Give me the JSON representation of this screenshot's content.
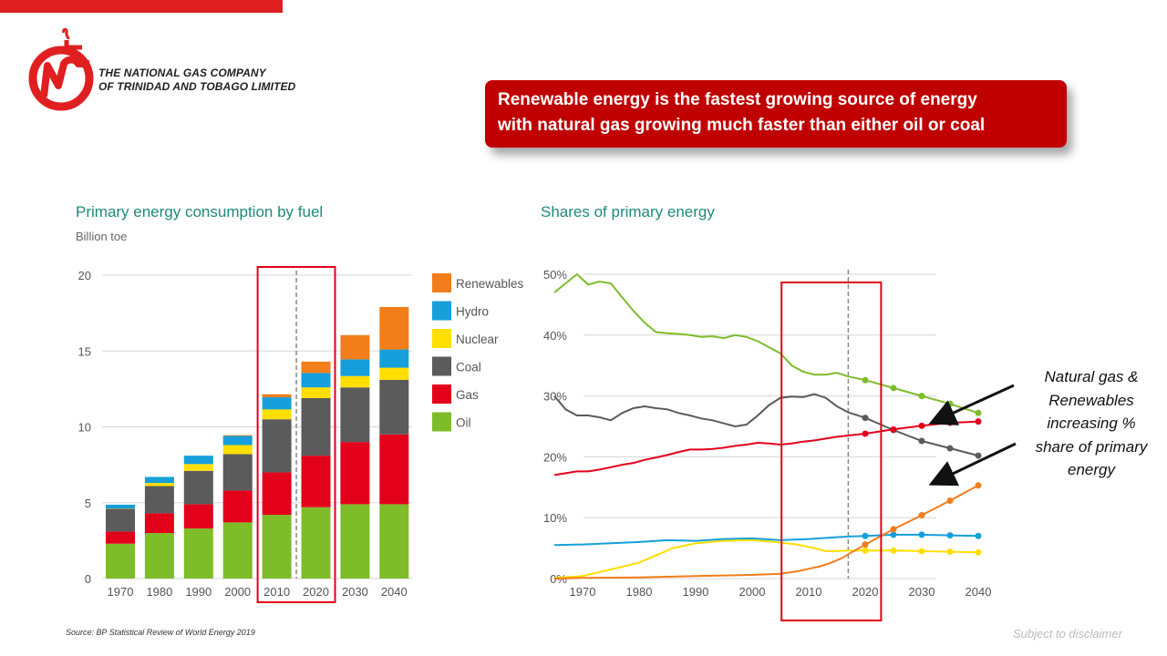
{
  "header": {
    "company_line1": "THE NATIONAL GAS COMPANY",
    "company_line2": "OF TRINIDAD AND TOBAGO LIMITED",
    "accent_color": "#e02020"
  },
  "banner": {
    "line1": "Renewable energy is the fastest growing source of energy",
    "line2": "with natural gas growing much faster than either oil or coal",
    "color": "#c00000"
  },
  "annotation": {
    "lines": [
      "Natural gas &",
      "Renewables",
      "increasing %",
      "share of primary",
      "energy"
    ]
  },
  "footer": {
    "source": "Source: BP Statistical Review of World Energy 2019",
    "disclaimer": "Subject to disclaimer"
  },
  "chart_data": [
    {
      "type": "bar",
      "stacked": true,
      "title": "Primary energy consumption by fuel",
      "subtitle": "Billion toe",
      "categories": [
        "1970",
        "1980",
        "1990",
        "2000",
        "2010",
        "2020",
        "2030",
        "2040"
      ],
      "ylim": [
        0,
        20
      ],
      "yticks": [
        0,
        5,
        10,
        15,
        20
      ],
      "series": [
        {
          "name": "Oil",
          "color": "#7ebc2a",
          "values": [
            2.3,
            3.0,
            3.3,
            3.7,
            4.2,
            4.7,
            4.9,
            4.9
          ]
        },
        {
          "name": "Gas",
          "color": "#e3001b",
          "values": [
            0.8,
            1.3,
            1.6,
            2.1,
            2.8,
            3.4,
            4.1,
            4.6
          ]
        },
        {
          "name": "Coal",
          "color": "#5b5b5b",
          "values": [
            1.5,
            1.8,
            2.2,
            2.4,
            3.5,
            3.8,
            3.6,
            3.6
          ]
        },
        {
          "name": "Nuclear",
          "color": "#ffde00",
          "values": [
            0.02,
            0.2,
            0.45,
            0.6,
            0.65,
            0.7,
            0.75,
            0.8
          ]
        },
        {
          "name": "Hydro",
          "color": "#169fdb",
          "values": [
            0.25,
            0.4,
            0.55,
            0.6,
            0.8,
            0.95,
            1.1,
            1.2
          ]
        },
        {
          "name": "Renewables",
          "color": "#f17d1b",
          "values": [
            0.0,
            0.0,
            0.0,
            0.05,
            0.2,
            0.75,
            1.6,
            2.8
          ]
        }
      ],
      "legend_order": [
        "Renewables",
        "Hydro",
        "Nuclear",
        "Coal",
        "Gas",
        "Oil"
      ],
      "highlight": {
        "from": "2010",
        "to": "2020"
      },
      "divider_between": [
        "2010",
        "2020"
      ]
    },
    {
      "type": "line",
      "title": "Shares of primary energy",
      "xlim": [
        1970,
        2040
      ],
      "xticks": [
        1970,
        1980,
        1990,
        2000,
        2010,
        2020,
        2030,
        2040
      ],
      "ylim": [
        0,
        50
      ],
      "yticks": [
        0,
        10,
        20,
        30,
        40,
        50
      ],
      "ytick_labels": [
        "0%",
        "10%",
        "20%",
        "30%",
        "40%",
        "50%"
      ],
      "projection_start": 2017,
      "highlight": {
        "from": 2006,
        "to": 2022
      },
      "marker_years": [
        2020,
        2025,
        2030,
        2035,
        2040
      ],
      "series": [
        {
          "name": "Oil",
          "color": "#7ebc2a",
          "x": [
            1965,
            1967,
            1969,
            1971,
            1973,
            1975,
            1977,
            1979,
            1981,
            1983,
            1985,
            1987,
            1989,
            1991,
            1993,
            1995,
            1997,
            1999,
            2001,
            2003,
            2005,
            2007,
            2009,
            2011,
            2013,
            2015,
            2017,
            2020,
            2025,
            2030,
            2035,
            2040
          ],
          "y": [
            47.0,
            48.5,
            50.0,
            48.3,
            48.8,
            48.5,
            46.2,
            44.0,
            42.0,
            40.5,
            40.3,
            40.2,
            40.0,
            39.7,
            39.8,
            39.5,
            40.0,
            39.7,
            39.0,
            38.0,
            37.0,
            35.0,
            34.0,
            33.5,
            33.5,
            33.8,
            33.2,
            32.6,
            31.3,
            30.0,
            28.7,
            27.2
          ]
        },
        {
          "name": "Coal",
          "color": "#5b5b5b",
          "x": [
            1965,
            1967,
            1969,
            1971,
            1973,
            1975,
            1977,
            1979,
            1981,
            1983,
            1985,
            1987,
            1989,
            1991,
            1993,
            1995,
            1997,
            1999,
            2001,
            2003,
            2005,
            2007,
            2009,
            2011,
            2013,
            2015,
            2017,
            2020,
            2025,
            2030,
            2035,
            2040
          ],
          "y": [
            30.0,
            27.8,
            26.8,
            26.8,
            26.5,
            26.0,
            27.2,
            28.0,
            28.3,
            28.0,
            27.8,
            27.2,
            26.8,
            26.3,
            26.0,
            25.5,
            25.0,
            25.3,
            26.8,
            28.5,
            29.7,
            29.9,
            29.8,
            30.3,
            29.7,
            28.3,
            27.3,
            26.4,
            24.4,
            22.6,
            21.4,
            20.2
          ]
        },
        {
          "name": "Gas",
          "color": "#e3001b",
          "x": [
            1965,
            1967,
            1969,
            1971,
            1973,
            1975,
            1977,
            1979,
            1981,
            1983,
            1985,
            1987,
            1989,
            1991,
            1993,
            1995,
            1997,
            1999,
            2001,
            2003,
            2005,
            2007,
            2009,
            2011,
            2013,
            2015,
            2017,
            2020,
            2025,
            2030,
            2035,
            2040
          ],
          "y": [
            17.0,
            17.3,
            17.6,
            17.6,
            17.9,
            18.3,
            18.7,
            19.0,
            19.5,
            19.9,
            20.3,
            20.8,
            21.2,
            21.2,
            21.3,
            21.5,
            21.8,
            22.0,
            22.3,
            22.2,
            22.0,
            22.2,
            22.5,
            22.7,
            23.0,
            23.3,
            23.5,
            23.8,
            24.5,
            25.1,
            25.6,
            25.8
          ]
        },
        {
          "name": "Hydro",
          "color": "#169fdb",
          "x": [
            1965,
            1970,
            1975,
            1980,
            1985,
            1990,
            1995,
            2000,
            2005,
            2010,
            2015,
            2017,
            2020,
            2025,
            2030,
            2035,
            2040
          ],
          "y": [
            5.5,
            5.6,
            5.8,
            6.0,
            6.3,
            6.2,
            6.5,
            6.6,
            6.3,
            6.5,
            6.8,
            6.9,
            7.0,
            7.2,
            7.2,
            7.1,
            7.0
          ]
        },
        {
          "name": "Nuclear",
          "color": "#ffde00",
          "x": [
            1965,
            1970,
            1975,
            1980,
            1983,
            1986,
            1990,
            1995,
            2000,
            2004,
            2008,
            2011,
            2013,
            2015,
            2017,
            2020,
            2025,
            2030,
            2035,
            2040
          ],
          "y": [
            0.1,
            0.4,
            1.5,
            2.6,
            3.8,
            5.0,
            5.8,
            6.2,
            6.3,
            6.0,
            5.6,
            5.0,
            4.5,
            4.5,
            4.6,
            4.6,
            4.6,
            4.5,
            4.4,
            4.3
          ]
        },
        {
          "name": "Renewables",
          "color": "#f17d1b",
          "x": [
            1965,
            1970,
            1980,
            1990,
            2000,
            2005,
            2008,
            2010,
            2012,
            2014,
            2016,
            2017,
            2020,
            2025,
            2030,
            2035,
            2040
          ],
          "y": [
            0.0,
            0.1,
            0.2,
            0.4,
            0.6,
            0.8,
            1.2,
            1.6,
            2.0,
            2.6,
            3.4,
            4.0,
            5.6,
            8.1,
            10.4,
            12.8,
            15.3
          ]
        }
      ]
    }
  ]
}
